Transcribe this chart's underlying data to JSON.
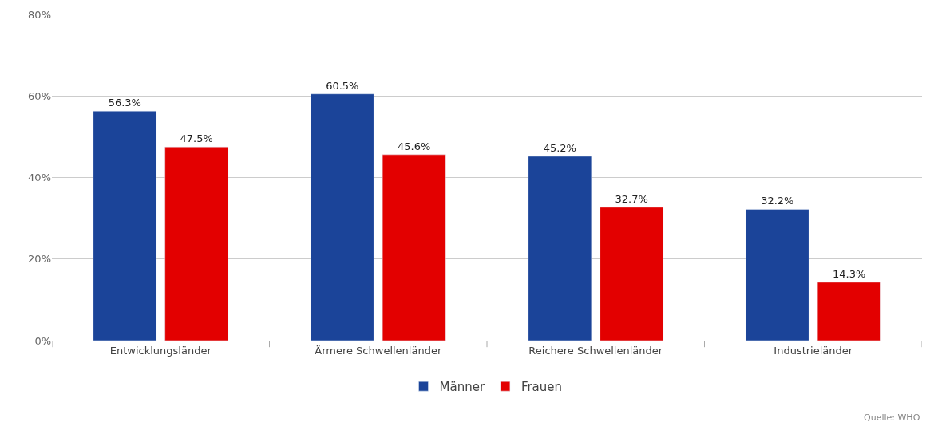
{
  "chart_data": {
    "type": "bar",
    "categories": [
      "Entwicklungsländer",
      "Ärmere Schwellenländer",
      "Reichere Schwellenländer",
      "Industrieländer"
    ],
    "series": [
      {
        "name": "Männer",
        "color": "#1b4499",
        "values": [
          56.3,
          60.5,
          45.2,
          32.2
        ],
        "value_labels": [
          "56.3%",
          "60.5%",
          "45.2%",
          "32.2%"
        ]
      },
      {
        "name": "Frauen",
        "color": "#e30000",
        "values": [
          47.5,
          45.6,
          32.7,
          14.3
        ],
        "value_labels": [
          "47.5%",
          "45.6%",
          "32.7%",
          "14.3%"
        ]
      }
    ],
    "ylim": [
      0,
      80
    ],
    "yticks": [
      {
        "value": 0,
        "label": "0%"
      },
      {
        "value": 20,
        "label": "20%"
      },
      {
        "value": 40,
        "label": "40%"
      },
      {
        "value": 60,
        "label": "60%"
      },
      {
        "value": 80,
        "label": "80%"
      }
    ],
    "grid": "y",
    "legend": "bottom",
    "annotations": [
      "Quelle: WHO"
    ]
  }
}
